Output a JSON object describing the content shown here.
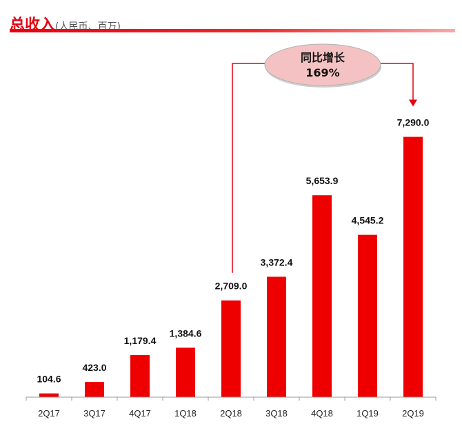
{
  "header": {
    "title": "总收入",
    "subtitle": "(人民币、百万)"
  },
  "colors": {
    "accent": "#e60012",
    "bar": "#ee0000",
    "callout_fill": "#f4c2c2"
  },
  "callout": {
    "line1": "同比增长",
    "line2": "169%",
    "from_category": "2Q18",
    "to_category": "2Q19"
  },
  "chart_data": {
    "type": "bar",
    "title": "总收入",
    "subtitle": "(人民币、百万)",
    "xlabel": "",
    "ylabel": "",
    "ylim": [
      0,
      7300
    ],
    "grid": false,
    "categories": [
      "2Q17",
      "3Q17",
      "4Q17",
      "1Q18",
      "2Q18",
      "3Q18",
      "4Q18",
      "1Q19",
      "2Q19"
    ],
    "values": [
      104.6,
      423.0,
      1179.4,
      1384.6,
      2709.0,
      3372.4,
      5653.9,
      4545.2,
      7290.0
    ],
    "value_labels": [
      "104.6",
      "423.0",
      "1,179.4",
      "1,384.6",
      "2,709.0",
      "3,372.4",
      "5,653.9",
      "4,545.2",
      "7,290.0"
    ],
    "annotations": [
      "同比增长 169%"
    ]
  }
}
